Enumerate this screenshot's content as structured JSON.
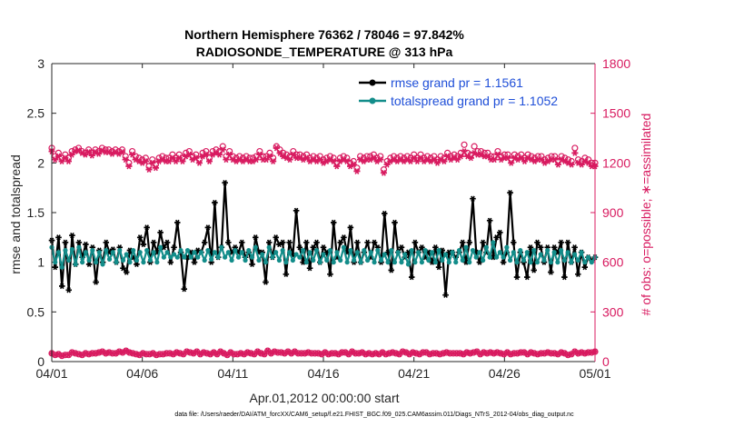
{
  "chart_data": {
    "type": "line",
    "title_line1": "Northern Hemisphere 76362 / 78046 = 97.842%",
    "title_line2": "RADIOSONDE_TEMPERATURE @ 313 hPa",
    "xlabel": "Apr.01,2012 00:00:00 start",
    "ylabel_left": "rmse and totalspread",
    "ylabel_right": "# of obs: o=possible; ∗=assimilated",
    "x_ticks": [
      {
        "value": 0,
        "label": "04/01"
      },
      {
        "value": 5,
        "label": "04/06"
      },
      {
        "value": 10,
        "label": "04/11"
      },
      {
        "value": 15,
        "label": "04/16"
      },
      {
        "value": 20,
        "label": "04/21"
      },
      {
        "value": 25,
        "label": "04/26"
      },
      {
        "value": 30,
        "label": "05/01"
      }
    ],
    "xlim": [
      0,
      30
    ],
    "ylim_left": [
      0,
      3
    ],
    "ylim_right": [
      0,
      1800
    ],
    "y_ticks_left": [
      "0",
      "0.5",
      "1",
      "1.5",
      "2",
      "2.5",
      "3"
    ],
    "y_ticks_right": [
      "0",
      "300",
      "600",
      "900",
      "1200",
      "1500",
      "1800"
    ],
    "footnote": "data file: /Users/raeder/DAI/ATM_forcXX/CAM6_setup/f.e21.FHIST_BGC.f09_025.CAM6assim.011/Diags_NTrS_2012-04/obs_diag_output.nc",
    "colors": {
      "rmse": "#000000",
      "spread": "#138d8a",
      "obs": "#d81b60",
      "legend_text": "#1f4fd8"
    },
    "series": [
      {
        "name": "rmse grand pr = 1.1561",
        "axis": "left",
        "marker": "asterisk",
        "values": [
          1.22,
          0.95,
          1.25,
          0.76,
          1.2,
          0.72,
          1.27,
          0.98,
          1.2,
          1.05,
          1.18,
          0.98,
          1.15,
          0.8,
          1.12,
          1.0,
          1.2,
          1.1,
          1.13,
          1.0,
          1.15,
          0.94,
          0.9,
          1.12,
          1.05,
          0.98,
          1.25,
          1.18,
          1.35,
          1.0,
          1.2,
          1.1,
          1.3,
          1.15,
          1.2,
          1.0,
          1.15,
          1.4,
          1.1,
          0.73,
          1.05,
          1.1,
          1.0,
          1.12,
          1.1,
          1.2,
          1.35,
          1.0,
          1.6,
          1.05,
          1.15,
          1.8,
          1.2,
          1.1,
          1.15,
          1.1,
          1.2,
          1.05,
          1.1,
          0.98,
          1.25,
          1.1,
          1.1,
          0.8,
          1.2,
          1.05,
          1.25,
          1.18,
          1.2,
          0.88,
          1.2,
          1.07,
          1.52,
          1.15,
          1.0,
          1.2,
          0.94,
          1.15,
          1.2,
          1.0,
          1.15,
          1.1,
          0.88,
          1.4,
          1.05,
          1.2,
          1.25,
          1.1,
          1.35,
          1.0,
          1.2,
          1.0,
          1.1,
          1.2,
          1.05,
          1.2,
          1.15,
          1.0,
          1.49,
          1.1,
          0.92,
          1.4,
          1.1,
          1.15,
          1.05,
          1.1,
          0.85,
          1.2,
          1.1,
          1.15,
          1.05,
          1.1,
          1.0,
          1.15,
          0.95,
          1.12,
          0.67,
          1.1,
          1.1,
          1.05,
          1.1,
          1.2,
          1.0,
          1.2,
          1.64,
          1.1,
          1.0,
          1.2,
          1.1,
          1.42,
          1.05,
          1.25,
          1.3,
          1.0,
          1.1,
          1.7,
          1.2,
          0.85,
          1.1,
          1.0,
          0.85,
          1.15,
          0.92,
          1.2,
          1.15,
          1.0,
          1.15,
          0.9,
          1.15,
          1.1,
          1.2,
          0.85,
          1.2,
          1.0,
          1.15,
          0.88,
          1.1,
          0.95,
          1.05,
          1.02,
          1.05
        ]
      },
      {
        "name": "totalspread grand pr = 1.1052",
        "axis": "left",
        "marker": "dot",
        "values": [
          1.15,
          1.0,
          1.1,
          0.95,
          1.12,
          1.02,
          1.13,
          0.98,
          1.15,
          1.0,
          1.1,
          1.02,
          1.12,
          1.0,
          1.1,
          0.98,
          1.12,
          1.03,
          1.1,
          1.0,
          1.12,
          1.02,
          1.08,
          1.0,
          1.12,
          1.02,
          1.1,
          1.0,
          1.12,
          1.02,
          1.1,
          1.0,
          1.15,
          1.05,
          1.1,
          1.05,
          1.08,
          1.05,
          1.12,
          1.05,
          1.12,
          1.05,
          1.1,
          1.05,
          1.1,
          1.02,
          1.12,
          1.03,
          1.1,
          1.05,
          1.15,
          1.05,
          1.1,
          1.02,
          1.12,
          1.05,
          1.1,
          1.02,
          1.12,
          1.05,
          1.15,
          1.02,
          1.08,
          1.0,
          1.15,
          1.05,
          1.1,
          1.02,
          1.12,
          1.0,
          1.1,
          1.02,
          1.08,
          1.05,
          1.12,
          1.0,
          1.1,
          1.02,
          1.12,
          1.0,
          1.08,
          1.02,
          1.12,
          1.0,
          1.1,
          1.02,
          1.15,
          1.0,
          1.12,
          1.02,
          1.1,
          1.0,
          1.12,
          1.02,
          1.1,
          1.0,
          1.12,
          1.02,
          1.08,
          1.0,
          1.12,
          1.0,
          1.1,
          1.0,
          1.08,
          0.98,
          1.12,
          1.0,
          1.1,
          1.0,
          1.12,
          1.02,
          1.1,
          1.0,
          1.12,
          1.02,
          1.08,
          1.0,
          1.1,
          1.0,
          1.12,
          1.02,
          1.15,
          1.0,
          1.12,
          1.05,
          1.1,
          1.02,
          1.15,
          1.05,
          1.2,
          1.05,
          1.1,
          1.05,
          1.15,
          1.02,
          1.1,
          1.0,
          1.12,
          1.02,
          1.1,
          1.0,
          1.12,
          1.0,
          1.08,
          1.02,
          1.12,
          1.0,
          1.1,
          1.0,
          1.12,
          1.02,
          1.1,
          1.0,
          1.08,
          1.02,
          1.1,
          1.0,
          1.05,
          1.0,
          1.05
        ]
      },
      {
        "name": "obs possible (upper)",
        "axis": "right",
        "marker": "circle",
        "values": [
          1290,
          1240,
          1260,
          1230,
          1250,
          1230,
          1270,
          1280,
          1290,
          1270,
          1260,
          1280,
          1260,
          1280,
          1270,
          1290,
          1280,
          1280,
          1270,
          1280,
          1270,
          1280,
          1240,
          1200,
          1270,
          1240,
          1230,
          1220,
          1230,
          1180,
          1220,
          1190,
          1230,
          1240,
          1230,
          1230,
          1250,
          1230,
          1250,
          1230,
          1260,
          1270,
          1240,
          1250,
          1220,
          1260,
          1270,
          1230,
          1270,
          1280,
          1270,
          1300,
          1240,
          1270,
          1240,
          1230,
          1240,
          1230,
          1240,
          1230,
          1230,
          1240,
          1270,
          1240,
          1240,
          1260,
          1230,
          1300,
          1280,
          1260,
          1250,
          1240,
          1270,
          1250,
          1250,
          1240,
          1250,
          1230,
          1240,
          1230,
          1240,
          1220,
          1230,
          1240,
          1230,
          1200,
          1230,
          1240,
          1230,
          1200,
          1210,
          1170,
          1240,
          1230,
          1240,
          1240,
          1250,
          1230,
          1240,
          1160,
          1210,
          1230,
          1240,
          1230,
          1240,
          1230,
          1240,
          1230,
          1250,
          1230,
          1250,
          1230,
          1240,
          1230,
          1240,
          1220,
          1240,
          1230,
          1260,
          1240,
          1250,
          1240,
          1260,
          1310,
          1260,
          1250,
          1300,
          1270,
          1270,
          1260,
          1260,
          1240,
          1240,
          1270,
          1240,
          1250,
          1250,
          1220,
          1250,
          1240,
          1250,
          1230,
          1250,
          1240,
          1230,
          1240,
          1240,
          1220,
          1230,
          1240,
          1240,
          1210,
          1240,
          1230,
          1220,
          1210,
          1290,
          1220,
          1210,
          1230,
          1220,
          1200,
          1200
        ]
      },
      {
        "name": "obs assimilated (upper)",
        "axis": "right",
        "marker": "asterisk",
        "values": [
          1270,
          1220,
          1240,
          1210,
          1230,
          1210,
          1250,
          1270,
          1275,
          1260,
          1250,
          1265,
          1245,
          1265,
          1255,
          1275,
          1265,
          1265,
          1255,
          1265,
          1255,
          1265,
          1220,
          1180,
          1250,
          1220,
          1210,
          1200,
          1210,
          1160,
          1200,
          1170,
          1210,
          1220,
          1210,
          1210,
          1230,
          1210,
          1230,
          1210,
          1240,
          1250,
          1220,
          1230,
          1200,
          1240,
          1250,
          1210,
          1250,
          1260,
          1250,
          1280,
          1220,
          1250,
          1220,
          1210,
          1220,
          1210,
          1220,
          1210,
          1210,
          1220,
          1250,
          1220,
          1220,
          1240,
          1210,
          1290,
          1260,
          1240,
          1230,
          1220,
          1250,
          1230,
          1230,
          1220,
          1230,
          1210,
          1220,
          1210,
          1220,
          1200,
          1210,
          1220,
          1210,
          1180,
          1210,
          1220,
          1210,
          1180,
          1190,
          1150,
          1220,
          1210,
          1220,
          1220,
          1230,
          1210,
          1220,
          1140,
          1190,
          1210,
          1220,
          1210,
          1220,
          1210,
          1220,
          1210,
          1230,
          1210,
          1230,
          1210,
          1220,
          1210,
          1220,
          1200,
          1220,
          1210,
          1240,
          1220,
          1230,
          1220,
          1240,
          1270,
          1240,
          1230,
          1260,
          1250,
          1250,
          1240,
          1240,
          1220,
          1220,
          1250,
          1220,
          1230,
          1230,
          1200,
          1230,
          1220,
          1230,
          1210,
          1230,
          1220,
          1210,
          1220,
          1220,
          1200,
          1210,
          1220,
          1220,
          1190,
          1220,
          1210,
          1200,
          1190,
          1260,
          1200,
          1190,
          1210,
          1200,
          1180,
          1180
        ]
      },
      {
        "name": "obs possible (lower)",
        "axis": "right",
        "marker": "circle",
        "values": [
          50,
          40,
          45,
          35,
          40,
          40,
          55,
          50,
          45,
          40,
          50,
          45,
          50,
          50,
          55,
          60,
          50,
          55,
          50,
          50,
          60,
          55,
          65,
          55,
          50,
          45,
          40,
          50,
          45,
          45,
          50,
          40,
          45,
          45,
          50,
          50,
          45,
          55,
          50,
          45,
          60,
          55,
          50,
          60,
          45,
          55,
          50,
          45,
          55,
          45,
          60,
          50,
          40,
          55,
          45,
          45,
          50,
          45,
          55,
          50,
          45,
          60,
          50,
          45,
          65,
          50,
          60,
          55,
          55,
          50,
          60,
          50,
          60,
          50,
          50,
          50,
          55,
          50,
          50,
          50,
          45,
          55,
          45,
          50,
          50,
          45,
          55,
          55,
          45,
          60,
          50,
          50,
          55,
          45,
          50,
          45,
          50,
          45,
          55,
          45,
          50,
          55,
          50,
          45,
          60,
          55,
          45,
          55,
          50,
          45,
          55,
          55,
          45,
          50,
          50,
          45,
          50,
          55,
          50,
          50,
          50,
          50,
          45,
          55,
          50,
          55,
          60,
          45,
          55,
          50,
          55,
          50,
          55,
          50,
          45,
          55,
          45,
          50,
          50,
          55,
          55,
          45,
          55,
          50,
          45,
          50,
          50,
          55,
          50,
          50,
          45,
          55,
          50,
          40,
          45,
          60,
          50,
          55,
          50,
          55,
          55,
          60
        ]
      },
      {
        "name": "obs assimilated (lower)",
        "axis": "right",
        "marker": "asterisk",
        "values": [
          50,
          40,
          45,
          35,
          40,
          40,
          55,
          50,
          45,
          40,
          50,
          45,
          50,
          50,
          55,
          60,
          50,
          55,
          50,
          50,
          60,
          55,
          65,
          55,
          50,
          45,
          40,
          50,
          45,
          45,
          50,
          40,
          45,
          45,
          50,
          50,
          45,
          55,
          50,
          45,
          60,
          55,
          50,
          60,
          45,
          55,
          50,
          45,
          55,
          45,
          60,
          50,
          40,
          55,
          45,
          45,
          50,
          45,
          55,
          50,
          45,
          60,
          50,
          45,
          65,
          50,
          60,
          55,
          55,
          50,
          60,
          50,
          60,
          50,
          50,
          50,
          55,
          50,
          50,
          50,
          45,
          55,
          45,
          50,
          50,
          45,
          55,
          55,
          45,
          60,
          50,
          50,
          55,
          45,
          50,
          45,
          50,
          45,
          55,
          45,
          50,
          55,
          50,
          45,
          60,
          55,
          45,
          55,
          50,
          45,
          55,
          55,
          45,
          50,
          50,
          45,
          50,
          55,
          50,
          50,
          50,
          50,
          45,
          55,
          50,
          55,
          60,
          45,
          55,
          50,
          55,
          50,
          55,
          50,
          45,
          55,
          45,
          50,
          50,
          55,
          55,
          45,
          55,
          50,
          45,
          50,
          50,
          55,
          50,
          50,
          45,
          55,
          50,
          40,
          45,
          60,
          50,
          55,
          50,
          55,
          55,
          60
        ]
      }
    ],
    "legend": {
      "placement": "top-right",
      "entries": [
        "rmse grand pr = 1.1561",
        "totalspread grand pr = 1.1052"
      ]
    },
    "grid": false
  }
}
